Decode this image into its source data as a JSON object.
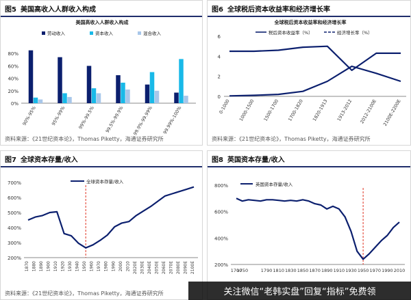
{
  "panels": [
    {
      "num": "图5",
      "title": "美国高收入人群收入构成",
      "source": "资料来源：《21世纪资本论》，Thomas Piketty，海通证券研究所"
    },
    {
      "num": "图6",
      "title": "全球税后资本收益率和经济增长率",
      "source": "资料来源：《21世纪资本论》，Thomas Piketty，海通证券研究所"
    },
    {
      "num": "图7",
      "title": "全球资本存量/收入",
      "source": "资料来源：《21世纪资本论》，Thomas Piketty，海通证券研究所"
    },
    {
      "num": "图8",
      "title": "英国资本存量/收入",
      "source": ""
    }
  ],
  "footer": {
    "text": "关注微信“老韩实盘”回复“指标”免费领"
  },
  "colors": {
    "navy": "#0b1f6e",
    "cyan": "#19b9e8",
    "lightblue": "#a8c7ea",
    "red_dash": "#e0301e",
    "header_rule": "#1f2d6b"
  },
  "chart_data": [
    {
      "type": "bar",
      "title": "美国高收入人群收入构成",
      "categories": [
        "90%-95%",
        "95%-99%",
        "99%-99.5%",
        "99.5%-99.9%",
        "99.9%-99.99%",
        "99.99%-100%"
      ],
      "series": [
        {
          "name": "劳动收入",
          "values": [
            85,
            74,
            60,
            45,
            30,
            17
          ]
        },
        {
          "name": "资本收入",
          "values": [
            9,
            16,
            24,
            33,
            50,
            71
          ]
        },
        {
          "name": "混合收入",
          "values": [
            6,
            10,
            16,
            22,
            20,
            12
          ]
        }
      ],
      "yticks": [
        "0%",
        "20%",
        "40%",
        "60%",
        "80%"
      ],
      "ylim": [
        0,
        100
      ],
      "legend": "top"
    },
    {
      "type": "line",
      "title": "全球税后资本收益率和经济增长率",
      "categories": [
        "0-1000",
        "1000-1500",
        "1500-1700",
        "1700-1820",
        "1820-1913",
        "1913-2012",
        "2012-2100E",
        "2100E-2200E"
      ],
      "series": [
        {
          "name": "税后资本收益率（%）",
          "values": [
            4.5,
            4.5,
            4.6,
            4.9,
            5.0,
            2.6,
            4.3,
            4.3
          ]
        },
        {
          "name": "经济增长率（%）",
          "values": [
            0.05,
            0.1,
            0.2,
            0.5,
            1.5,
            3.0,
            2.3,
            1.5
          ]
        }
      ],
      "yticks": [
        "0",
        "2",
        "4",
        "6"
      ],
      "ylim": [
        0,
        6
      ],
      "legend": "top"
    },
    {
      "type": "line",
      "title": "全球资本存量/收入",
      "x": [
        "1870",
        "1880",
        "1890",
        "1900",
        "1910",
        "1920",
        "1930",
        "1940",
        "1950",
        "1960",
        "1970",
        "1980",
        "1990",
        "2000",
        "2010",
        "2020E",
        "2030E",
        "2040E",
        "2050E",
        "2060E",
        "2070E",
        "2080E",
        "2090E",
        "2100E"
      ],
      "series": [
        {
          "name": "全球资本存量/收入",
          "values": [
            450,
            470,
            480,
            500,
            505,
            360,
            345,
            295,
            265,
            285,
            315,
            350,
            405,
            430,
            440,
            480,
            510,
            540,
            575,
            610,
            625,
            640,
            655,
            670
          ]
        }
      ],
      "yticks": [
        "200%",
        "300%",
        "400%",
        "500%",
        "600%",
        "700%"
      ],
      "ylim": [
        200,
        700
      ],
      "reference_line_x": "1950",
      "legend": "top"
    },
    {
      "type": "line",
      "title": "英国资本存量/收入",
      "x": [
        "1700",
        "1750",
        "1760",
        "1770",
        "1780",
        "1790",
        "1800",
        "1810",
        "1820",
        "1830",
        "1840",
        "1850",
        "1860",
        "1870",
        "1880",
        "1890",
        "1900",
        "1910",
        "1920",
        "1930",
        "1940",
        "1950",
        "1960",
        "1970",
        "1980",
        "1990",
        "2000",
        "2010"
      ],
      "series": [
        {
          "name": "英国资本存量/收入",
          "values": [
            700,
            680,
            690,
            685,
            680,
            690,
            690,
            685,
            680,
            685,
            680,
            690,
            680,
            660,
            650,
            620,
            640,
            620,
            560,
            450,
            300,
            240,
            280,
            330,
            380,
            420,
            480,
            520
          ]
        }
      ],
      "yticks": [
        "200%",
        "400%",
        "600%",
        "800%"
      ],
      "ylim": [
        200,
        800
      ],
      "xticks": [
        "1700",
        "1750",
        "1790",
        "1810",
        "1830",
        "1850",
        "1870",
        "1890",
        "1910",
        "1930",
        "1950",
        "1970",
        "1990",
        "2010"
      ],
      "reference_line_x": "1950",
      "legend": "top"
    }
  ]
}
